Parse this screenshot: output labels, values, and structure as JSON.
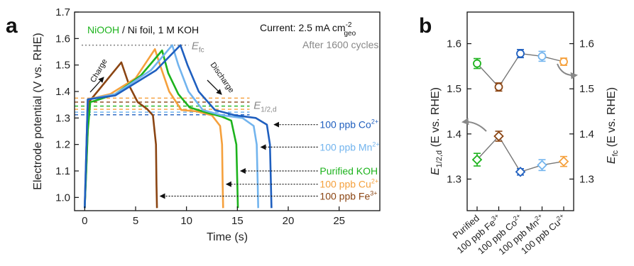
{
  "colors": {
    "fe": "#8B4513",
    "cu": "#F5A03C",
    "purified": "#1DB31D",
    "mn": "#72B4EE",
    "co": "#1F5FBF",
    "arrow": "#888888",
    "ref": "#888888"
  },
  "chart_data": [
    {
      "panel": "a",
      "type": "line",
      "xlabel": "Time (s)",
      "ylabel": "Electrode potential (V vs. RHE)",
      "xlim": [
        -1,
        29
      ],
      "ylim": [
        0.95,
        1.7
      ],
      "xticks": [
        0,
        5,
        10,
        15,
        20,
        25
      ],
      "yticks": [
        1.0,
        1.1,
        1.2,
        1.3,
        1.4,
        1.5,
        1.6,
        1.7
      ],
      "annotations": {
        "electrode_prefix": "NiOOH",
        "electrode_suffix": " / Ni foil, 1 M KOH",
        "current_prefix": "Current: 2.5 mA cm",
        "current_sup": "-2",
        "current_sub": "geo",
        "cycles": "After 1600 cycles",
        "efc_main": "E",
        "efc_sub": "fc",
        "e12_main": "E",
        "e12_sub": "1/2,d",
        "charge": "Charge",
        "discharge": "Discharge"
      },
      "efc_level": 1.575,
      "series": [
        {
          "name": "100 ppb Fe",
          "sup": "3+",
          "key": "fe",
          "x": [
            0,
            0.4,
            3.6,
            4.4,
            5.2,
            6.1,
            6.7,
            7.0,
            7.05,
            7.1
          ],
          "y": [
            0.96,
            1.36,
            1.51,
            1.42,
            1.36,
            1.335,
            1.31,
            1.2,
            1.05,
            0.96
          ]
        },
        {
          "name": "100 ppb Cu",
          "sup": "2+",
          "key": "cu",
          "x": [
            0,
            0.3,
            2.5,
            5.0,
            6.9,
            7.4,
            8.3,
            9.5,
            11.0,
            12.5,
            13.3,
            13.5,
            13.55,
            13.6
          ],
          "y": [
            0.96,
            1.37,
            1.39,
            1.45,
            1.56,
            1.5,
            1.4,
            1.33,
            1.325,
            1.31,
            1.27,
            1.2,
            1.05,
            0.96
          ]
        },
        {
          "name": "Purified KOH",
          "sup": "",
          "key": "purified",
          "x": [
            0,
            0.15,
            0.3,
            0.55,
            1.0,
            3.0,
            5.5,
            7.6,
            8.2,
            9.2,
            10.3,
            12.0,
            13.5,
            14.4,
            14.9,
            15.0,
            15.05
          ],
          "y": [
            0.96,
            1.1,
            1.25,
            1.36,
            1.365,
            1.39,
            1.46,
            1.555,
            1.47,
            1.39,
            1.34,
            1.32,
            1.305,
            1.29,
            1.2,
            1.05,
            0.96
          ]
        },
        {
          "name": "100 ppb Mn",
          "sup": "2+",
          "key": "mn",
          "x": [
            0,
            0.3,
            3.0,
            6.5,
            8.6,
            9.2,
            10.2,
            11.6,
            13.5,
            15.5,
            16.6,
            16.9,
            17.0,
            17.05
          ],
          "y": [
            0.96,
            1.37,
            1.39,
            1.48,
            1.575,
            1.5,
            1.4,
            1.33,
            1.31,
            1.3,
            1.27,
            1.2,
            1.05,
            0.96
          ]
        },
        {
          "name": "100 ppb Co",
          "sup": "2+",
          "key": "co",
          "x": [
            0,
            0.3,
            3.0,
            7.0,
            9.4,
            10.1,
            11.2,
            12.8,
            14.8,
            16.8,
            17.9,
            18.2,
            18.3,
            18.35
          ],
          "y": [
            0.96,
            1.37,
            1.385,
            1.48,
            1.575,
            1.5,
            1.4,
            1.33,
            1.31,
            1.3,
            1.275,
            1.2,
            1.05,
            0.96
          ]
        }
      ],
      "legend": [
        {
          "key": "co",
          "name": "100 ppb Co",
          "sup": "2+",
          "y": 1.275
        },
        {
          "key": "mn",
          "name": "100 ppb Mn",
          "sup": "2+",
          "y": 1.19
        },
        {
          "key": "purified",
          "name": "Purified KOH",
          "sup": "",
          "y": 1.1
        },
        {
          "key": "cu",
          "name": "100 ppb Cu",
          "sup": "2+",
          "y": 1.05
        },
        {
          "key": "fe",
          "name": "100 ppb Fe",
          "sup": "3+",
          "y": 1.005
        }
      ],
      "dashed_refs": [
        {
          "key": "cu",
          "y": 1.375
        },
        {
          "key": "fe",
          "y": 1.36
        },
        {
          "key": "purified",
          "y": 1.345
        },
        {
          "key": "cu",
          "y": 1.333
        },
        {
          "key": "mn",
          "y": 1.322
        },
        {
          "key": "co",
          "y": 1.312
        }
      ]
    },
    {
      "panel": "b",
      "type": "scatter",
      "ylabel_left_main": "E",
      "ylabel_left_sub": "1/2,d",
      "ylabel_left_rest": " (E vs. RHE)",
      "ylabel_right_main": "E",
      "ylabel_right_sub": "fc",
      "ylabel_right_rest": " (E vs. RHE)",
      "ylim": [
        1.23,
        1.67
      ],
      "yticks": [
        1.3,
        1.4,
        1.5,
        1.6
      ],
      "categories": [
        {
          "label": "Purified",
          "sup": ""
        },
        {
          "label": "100 ppb Fe",
          "sup": "3+"
        },
        {
          "label": "100 ppb Co",
          "sup": "2+"
        },
        {
          "label": "100 ppb Mn",
          "sup": "2+"
        },
        {
          "label": "100 ppb Cu",
          "sup": "2+"
        }
      ],
      "point_colors": [
        "purified",
        "fe",
        "co",
        "mn",
        "cu"
      ],
      "series": [
        {
          "marker": "circle",
          "axis": "right",
          "values": [
            1.556,
            1.504,
            1.578,
            1.572,
            1.56
          ],
          "errors": [
            0.011,
            0.009,
            0.009,
            0.011,
            0.008
          ]
        },
        {
          "marker": "diamond",
          "axis": "left",
          "values": [
            1.343,
            1.395,
            1.316,
            1.331,
            1.339
          ],
          "errors": [
            0.014,
            0.011,
            0.007,
            0.012,
            0.011
          ]
        }
      ]
    }
  ]
}
